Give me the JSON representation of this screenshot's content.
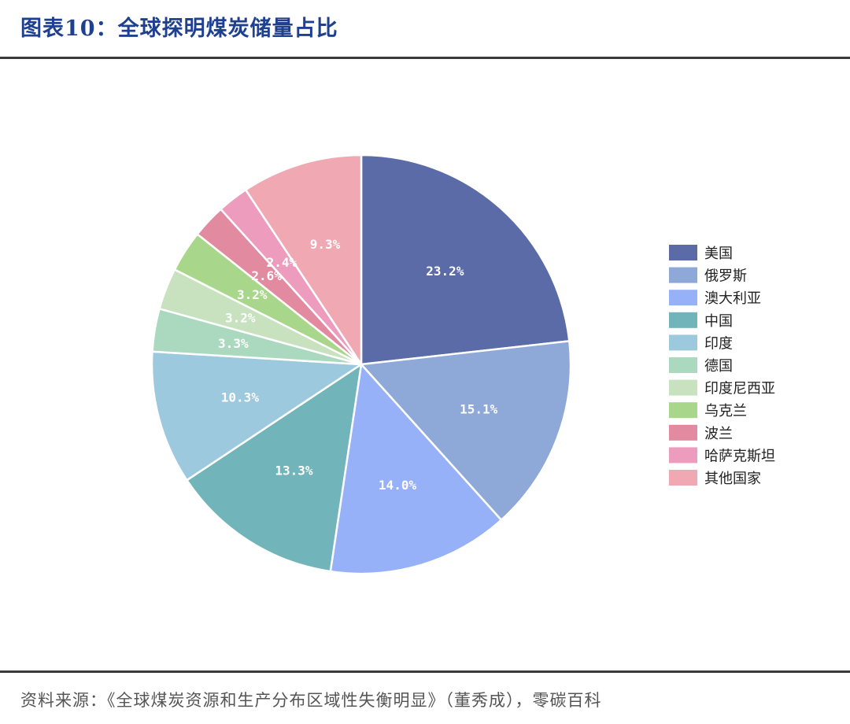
{
  "title": "图表10：全球探明煤炭储量占比",
  "source": "资料来源：《全球煤炭资源和生产分布区域性失衡明显》（董秀成），零碳百科",
  "chart_data": {
    "type": "pie",
    "title": "图表10：全球探明煤炭储量占比",
    "start_angle_deg": 0,
    "direction": "clockwise",
    "legend_position": "right",
    "slices": [
      {
        "label": "美国",
        "value": 23.2,
        "display": "23.2%",
        "color": "#5a6ba8"
      },
      {
        "label": "俄罗斯",
        "value": 15.1,
        "display": "15.1%",
        "color": "#8ea8d8"
      },
      {
        "label": "澳大利亚",
        "value": 14.0,
        "display": "14.0%",
        "color": "#97b1f8"
      },
      {
        "label": "中国",
        "value": 13.3,
        "display": "13.3%",
        "color": "#71b4b9"
      },
      {
        "label": "印度",
        "value": 10.3,
        "display": "10.3%",
        "color": "#9dc9df"
      },
      {
        "label": "德国",
        "value": 3.3,
        "display": "3.3%",
        "color": "#abd9bf"
      },
      {
        "label": "印度尼西亚",
        "value": 3.2,
        "display": "3.2%",
        "color": "#c8e2c0"
      },
      {
        "label": "乌克兰",
        "value": 3.2,
        "display": "3.2%",
        "color": "#a8d68a"
      },
      {
        "label": "波兰",
        "value": 2.6,
        "display": "2.6%",
        "color": "#e18aa0"
      },
      {
        "label": "哈萨克斯坦",
        "value": 2.4,
        "display": "2.4%",
        "color": "#ee9cbd"
      },
      {
        "label": "其他国家",
        "value": 9.3,
        "display": "9.3%",
        "color": "#f0a9b3"
      }
    ]
  }
}
